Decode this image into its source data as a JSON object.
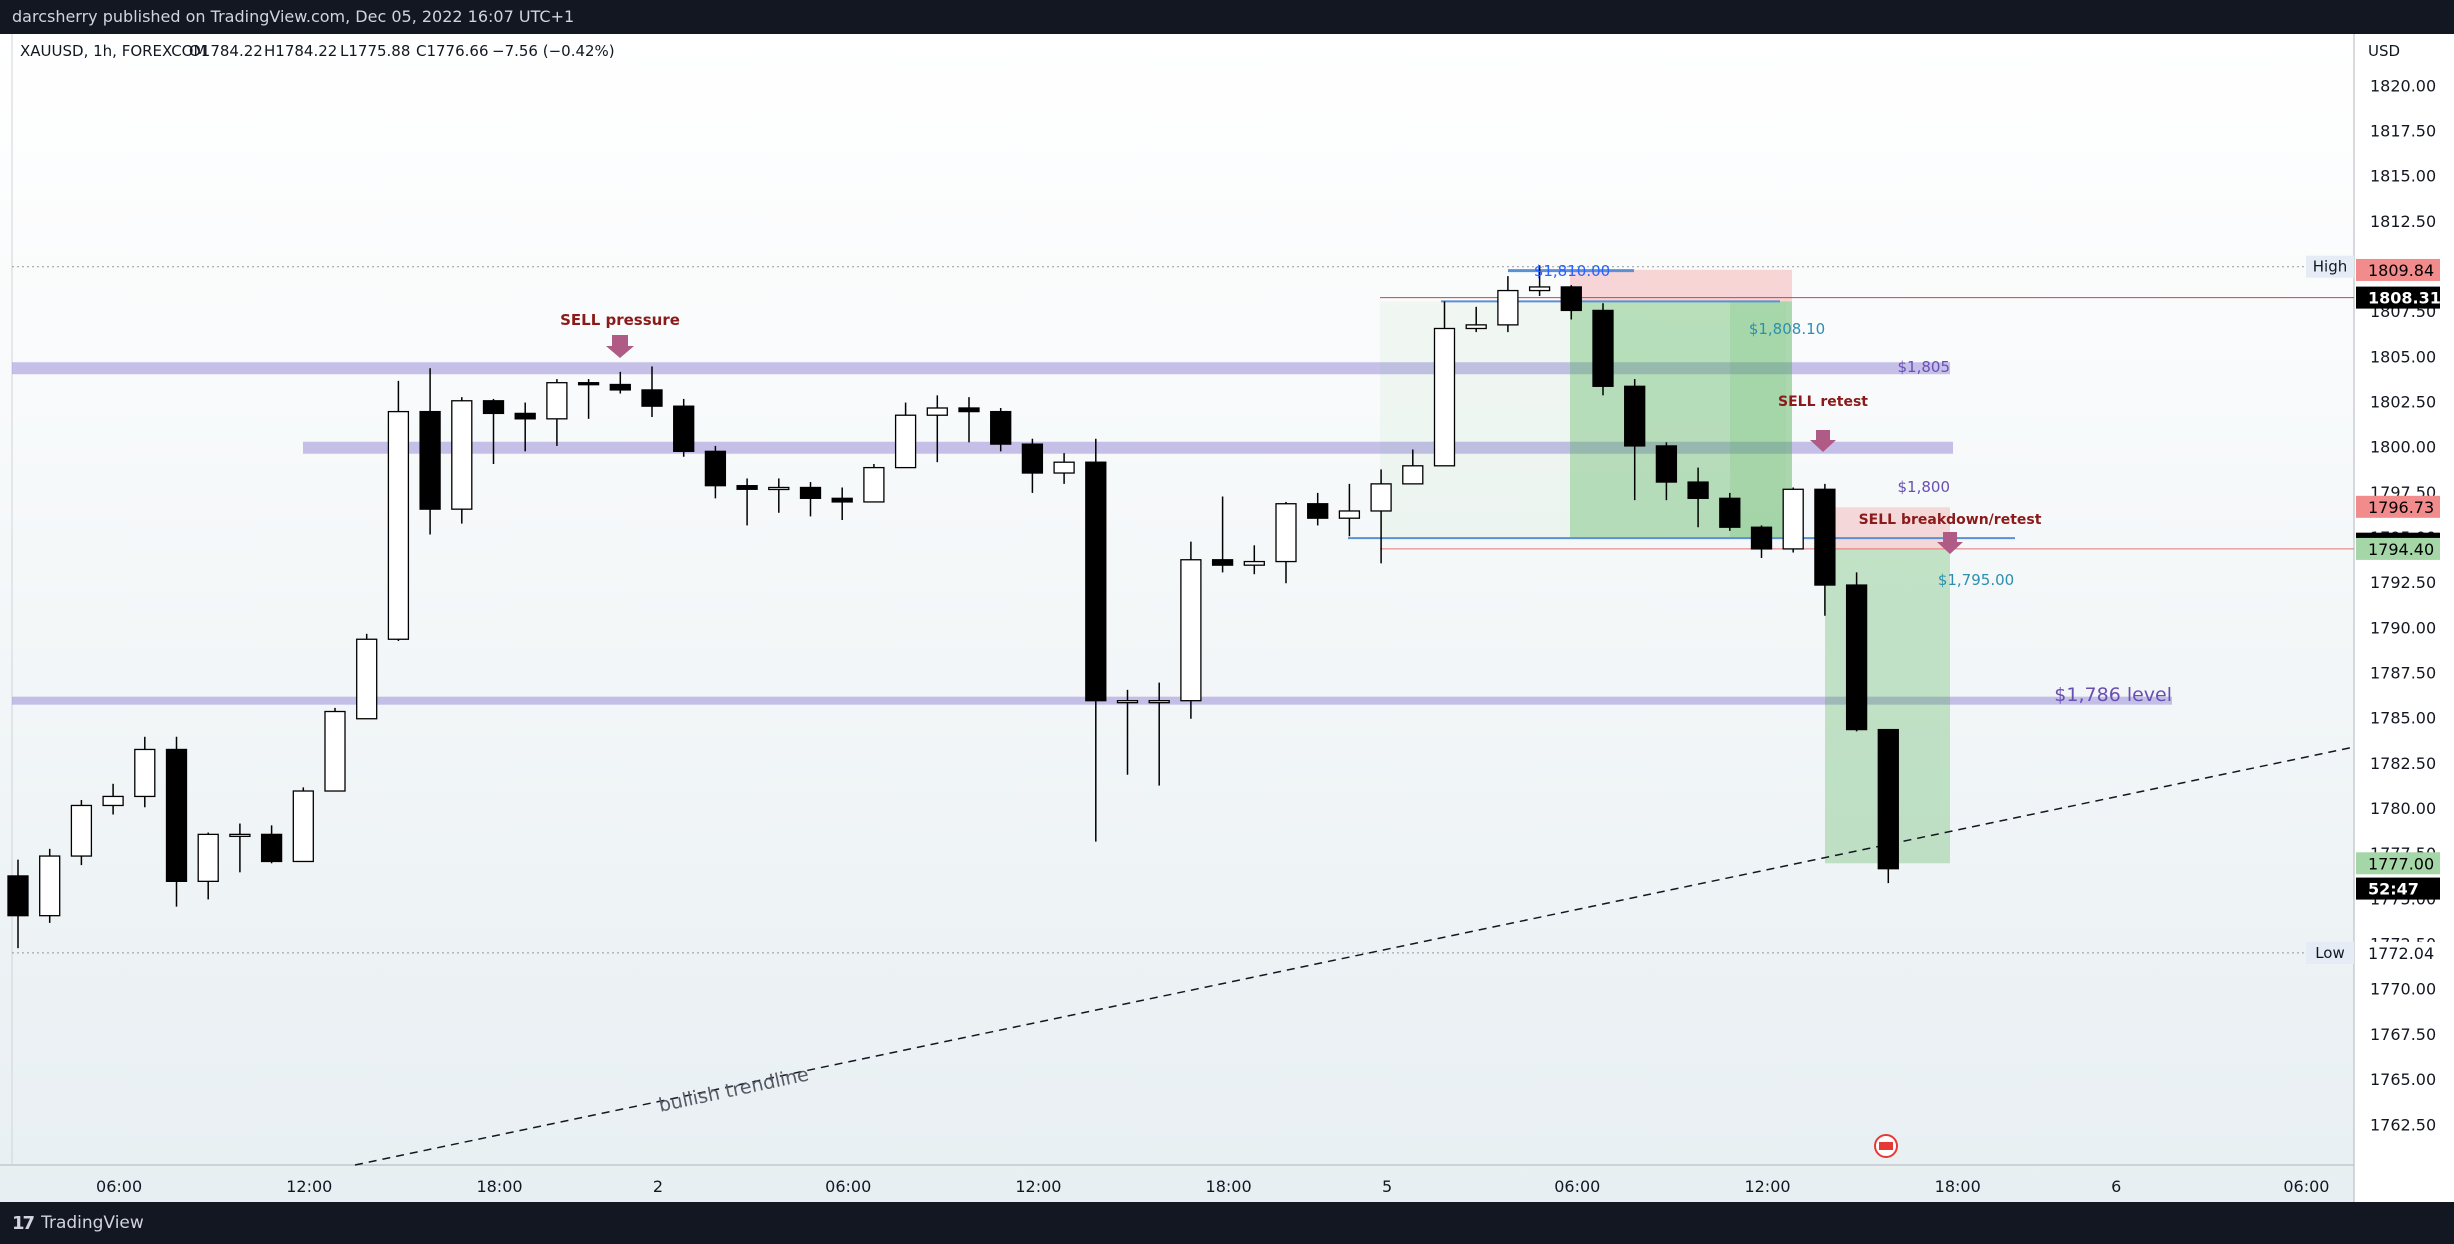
{
  "header": {
    "publisher_text": "darcsherry published on TradingView.com, Dec 05, 2022 16:07 UTC+1"
  },
  "footer": {
    "logo_icon": "tradingview-logo-icon",
    "logo_text": "TradingView"
  },
  "colors": {
    "bullish_body": "#ffffff",
    "bearish_body": "#000000",
    "wick": "#000000",
    "zone_purple": "#9c8fd8",
    "profit_green": "#4caf50",
    "risk_red": "#f28b8b",
    "annotation_red": "#8b1a1a",
    "arrow_mauve": "#b05a86",
    "label_blue": "#2962ff",
    "label_purple": "#6a4fb3"
  },
  "chart_data": {
    "type": "candlestick",
    "symbol_line": "XAUUSD, 1h, FOREXCOM",
    "ohlc_readout": {
      "open": "O1784.22",
      "high": "H1784.22",
      "low": "L1775.88",
      "close": "C1776.66",
      "change": "−7.56 (−0.42%)"
    },
    "currency": "USD",
    "ylim": [
      1760.3,
      1822.9
    ],
    "y_ticks": [
      "1820.00",
      "1817.50",
      "1815.00",
      "1812.50",
      "1810.00",
      "1807.50",
      "1805.00",
      "1802.50",
      "1800.00",
      "1797.50",
      "1795.00",
      "1792.50",
      "1790.00",
      "1787.50",
      "1785.00",
      "1782.50",
      "1780.00",
      "1777.50",
      "1775.00",
      "1772.50",
      "1770.00",
      "1767.50",
      "1765.00",
      "1762.50"
    ],
    "x_ticks": [
      {
        "label": "06:00",
        "bar": 3
      },
      {
        "label": "12:00",
        "bar": 9
      },
      {
        "label": "18:00",
        "bar": 15
      },
      {
        "label": "2",
        "bar": 20
      },
      {
        "label": "06:00",
        "bar": 26
      },
      {
        "label": "12:00",
        "bar": 32
      },
      {
        "label": "18:00",
        "bar": 38
      },
      {
        "label": "5",
        "bar": 43
      },
      {
        "label": "06:00",
        "bar": 49
      },
      {
        "label": "12:00",
        "bar": 55
      },
      {
        "label": "18:00",
        "bar": 61
      },
      {
        "label": "6",
        "bar": 66
      },
      {
        "label": "06:00",
        "bar": 72
      }
    ],
    "candles": [
      {
        "o": 1776.3,
        "h": 1777.2,
        "l": 1772.3,
        "c": 1774.1
      },
      {
        "o": 1774.1,
        "h": 1777.8,
        "l": 1773.7,
        "c": 1777.4
      },
      {
        "o": 1777.4,
        "h": 1780.5,
        "l": 1776.9,
        "c": 1780.2
      },
      {
        "o": 1780.2,
        "h": 1781.4,
        "l": 1779.7,
        "c": 1780.7
      },
      {
        "o": 1780.7,
        "h": 1784.0,
        "l": 1780.1,
        "c": 1783.3
      },
      {
        "o": 1783.3,
        "h": 1784.0,
        "l": 1774.6,
        "c": 1776.0
      },
      {
        "o": 1776.0,
        "h": 1778.7,
        "l": 1775.0,
        "c": 1778.6
      },
      {
        "o": 1778.6,
        "h": 1779.2,
        "l": 1776.5,
        "c": 1778.6
      },
      {
        "o": 1778.6,
        "h": 1779.1,
        "l": 1777.0,
        "c": 1777.1
      },
      {
        "o": 1777.1,
        "h": 1781.2,
        "l": 1777.1,
        "c": 1781.0
      },
      {
        "o": 1781.0,
        "h": 1785.6,
        "l": 1781.0,
        "c": 1785.4
      },
      {
        "o": 1785.0,
        "h": 1789.7,
        "l": 1785.0,
        "c": 1789.4
      },
      {
        "o": 1789.4,
        "h": 1803.7,
        "l": 1789.3,
        "c": 1802.0
      },
      {
        "o": 1802.0,
        "h": 1804.4,
        "l": 1795.2,
        "c": 1796.6
      },
      {
        "o": 1796.6,
        "h": 1802.8,
        "l": 1795.8,
        "c": 1802.6
      },
      {
        "o": 1802.6,
        "h": 1802.7,
        "l": 1799.1,
        "c": 1801.9
      },
      {
        "o": 1801.9,
        "h": 1802.5,
        "l": 1799.8,
        "c": 1801.6
      },
      {
        "o": 1801.6,
        "h": 1803.8,
        "l": 1800.1,
        "c": 1803.6
      },
      {
        "o": 1803.6,
        "h": 1803.8,
        "l": 1801.6,
        "c": 1803.5
      },
      {
        "o": 1803.5,
        "h": 1804.2,
        "l": 1803.0,
        "c": 1803.2
      },
      {
        "o": 1803.2,
        "h": 1804.5,
        "l": 1801.7,
        "c": 1802.3
      },
      {
        "o": 1802.3,
        "h": 1802.7,
        "l": 1799.5,
        "c": 1799.8
      },
      {
        "o": 1799.8,
        "h": 1800.1,
        "l": 1797.2,
        "c": 1797.9
      },
      {
        "o": 1797.9,
        "h": 1798.3,
        "l": 1795.7,
        "c": 1797.7
      },
      {
        "o": 1797.7,
        "h": 1798.3,
        "l": 1796.4,
        "c": 1797.8
      },
      {
        "o": 1797.8,
        "h": 1798.1,
        "l": 1796.2,
        "c": 1797.2
      },
      {
        "o": 1797.2,
        "h": 1797.8,
        "l": 1796.0,
        "c": 1797.0
      },
      {
        "o": 1797.0,
        "h": 1799.1,
        "l": 1797.0,
        "c": 1798.9
      },
      {
        "o": 1798.9,
        "h": 1802.5,
        "l": 1798.9,
        "c": 1801.8
      },
      {
        "o": 1801.8,
        "h": 1802.9,
        "l": 1799.2,
        "c": 1802.2
      },
      {
        "o": 1802.2,
        "h": 1802.8,
        "l": 1800.3,
        "c": 1802.0
      },
      {
        "o": 1802.0,
        "h": 1802.2,
        "l": 1799.8,
        "c": 1800.2
      },
      {
        "o": 1800.2,
        "h": 1800.5,
        "l": 1797.5,
        "c": 1798.6
      },
      {
        "o": 1798.6,
        "h": 1799.7,
        "l": 1798.0,
        "c": 1799.2
      },
      {
        "o": 1799.2,
        "h": 1800.5,
        "l": 1778.2,
        "c": 1786.0
      },
      {
        "o": 1786.0,
        "h": 1786.6,
        "l": 1781.9,
        "c": 1786.0
      },
      {
        "o": 1786.0,
        "h": 1787.0,
        "l": 1781.3,
        "c": 1786.0
      },
      {
        "o": 1786.0,
        "h": 1794.8,
        "l": 1785.0,
        "c": 1793.8
      },
      {
        "o": 1793.8,
        "h": 1797.3,
        "l": 1793.1,
        "c": 1793.5
      },
      {
        "o": 1793.5,
        "h": 1794.6,
        "l": 1793.0,
        "c": 1793.7
      },
      {
        "o": 1793.7,
        "h": 1797.0,
        "l": 1792.5,
        "c": 1796.9
      },
      {
        "o": 1796.9,
        "h": 1797.5,
        "l": 1795.7,
        "c": 1796.1
      },
      {
        "o": 1796.1,
        "h": 1798.0,
        "l": 1795.1,
        "c": 1796.5
      },
      {
        "o": 1796.5,
        "h": 1798.8,
        "l": 1793.6,
        "c": 1798.0
      },
      {
        "o": 1798.0,
        "h": 1799.9,
        "l": 1798.0,
        "c": 1799.0
      },
      {
        "o": 1799.0,
        "h": 1808.1,
        "l": 1799.0,
        "c": 1806.6
      },
      {
        "o": 1806.6,
        "h": 1807.8,
        "l": 1806.4,
        "c": 1806.8
      },
      {
        "o": 1806.8,
        "h": 1809.5,
        "l": 1806.4,
        "c": 1808.7
      },
      {
        "o": 1808.7,
        "h": 1810.1,
        "l": 1808.4,
        "c": 1808.9
      },
      {
        "o": 1808.9,
        "h": 1809.0,
        "l": 1807.1,
        "c": 1807.6
      },
      {
        "o": 1807.6,
        "h": 1808.0,
        "l": 1802.9,
        "c": 1803.4
      },
      {
        "o": 1803.4,
        "h": 1803.8,
        "l": 1797.1,
        "c": 1800.1
      },
      {
        "o": 1800.1,
        "h": 1800.3,
        "l": 1797.1,
        "c": 1798.1
      },
      {
        "o": 1798.1,
        "h": 1798.9,
        "l": 1795.6,
        "c": 1797.2
      },
      {
        "o": 1797.2,
        "h": 1797.5,
        "l": 1795.4,
        "c": 1795.6
      },
      {
        "o": 1795.6,
        "h": 1795.7,
        "l": 1793.9,
        "c": 1794.4
      },
      {
        "o": 1794.4,
        "h": 1797.8,
        "l": 1794.2,
        "c": 1797.7
      },
      {
        "o": 1797.7,
        "h": 1798.0,
        "l": 1790.7,
        "c": 1792.4
      },
      {
        "o": 1792.4,
        "h": 1793.1,
        "l": 1784.3,
        "c": 1784.4
      },
      {
        "o": 1784.4,
        "h": 1784.4,
        "l": 1775.9,
        "c": 1776.7
      }
    ],
    "levels": [
      {
        "label": "$1,805",
        "value": 1804.4
      },
      {
        "label": "$1,800",
        "value": 1800.0
      },
      {
        "label": "$1,786 level",
        "value": 1786.0
      }
    ],
    "annotations": [
      {
        "text": "SELL pressure"
      },
      {
        "text": "SELL retest"
      },
      {
        "text": "SELL breakdown/retest"
      },
      {
        "text": "bullish trendline"
      },
      {
        "text": "$1,810.00"
      },
      {
        "text": "$1,808.10"
      },
      {
        "text": "$1,795.00"
      }
    ],
    "axis_badges": [
      {
        "text": "High",
        "value": "1810.02"
      },
      {
        "text": "",
        "value": "1809.84"
      },
      {
        "text": "",
        "value": "1808.31"
      },
      {
        "text": "",
        "value": "1796.73"
      },
      {
        "text": "",
        "value": "1794.69"
      },
      {
        "text": "",
        "value": "1794.40"
      },
      {
        "text": "",
        "value": "1777.00"
      },
      {
        "text": "",
        "value": "52:47"
      },
      {
        "text": "Low",
        "value": "1772.04"
      }
    ],
    "grid": false
  }
}
